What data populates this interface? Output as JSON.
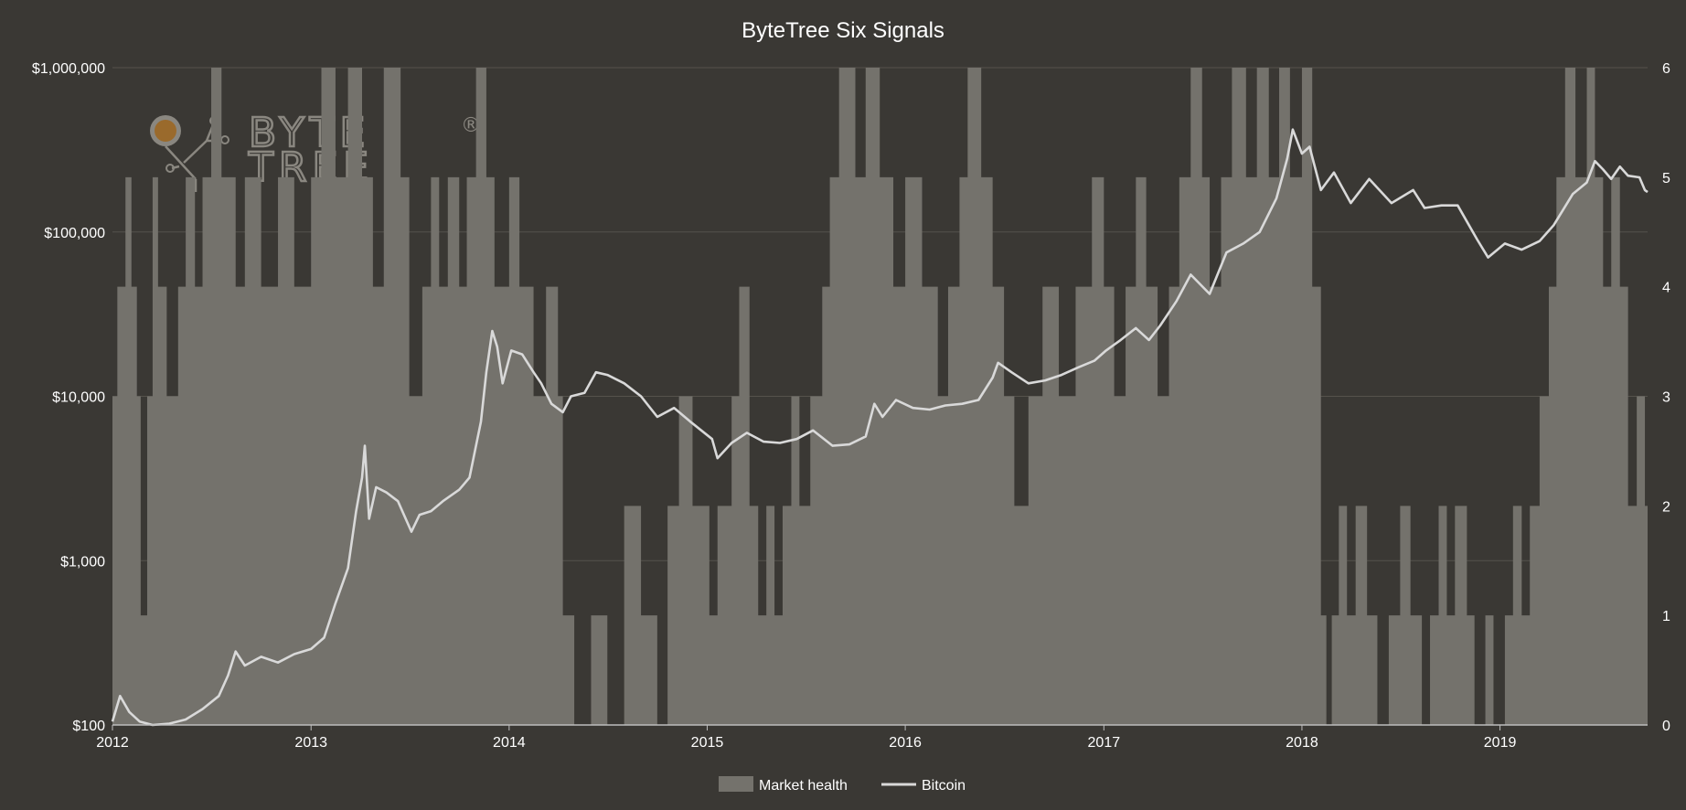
{
  "chart_data": {
    "type": "line",
    "title": "ByteTree Six Signals",
    "x_ticks": [
      "2012",
      "2013",
      "2014",
      "2015",
      "2016",
      "2017",
      "2018",
      "2019"
    ],
    "xlim": [
      "2012-01-01",
      "2019-09-30"
    ],
    "y_left": {
      "scale": "log",
      "lim": [
        100,
        1000000
      ],
      "ticks": [
        100,
        1000,
        10000,
        100000,
        1000000
      ],
      "tick_labels": [
        "$100",
        "$1,000",
        "$10,000",
        "$100,000",
        "$1,000,000"
      ]
    },
    "y_right": {
      "scale": "linear",
      "lim": [
        0,
        6
      ],
      "ticks": [
        0,
        1,
        2,
        3,
        4,
        5,
        6
      ],
      "tick_labels": [
        "0",
        "1",
        "2",
        "3",
        "4",
        "5",
        "6"
      ]
    },
    "grid": true,
    "legend_position": "bottom-center",
    "legend": [
      "Market health",
      "Bitcoin"
    ],
    "series": [
      {
        "name": "Market health",
        "type": "step-area",
        "axis": "right",
        "color": "#74726c",
        "points": [
          [
            "2012-01-01",
            3
          ],
          [
            "2012-01-10",
            4
          ],
          [
            "2012-01-25",
            5
          ],
          [
            "2012-02-05",
            4
          ],
          [
            "2012-02-15",
            3
          ],
          [
            "2012-02-22",
            1
          ],
          [
            "2012-03-05",
            3
          ],
          [
            "2012-03-15",
            5
          ],
          [
            "2012-03-25",
            4
          ],
          [
            "2012-04-10",
            3
          ],
          [
            "2012-05-01",
            4
          ],
          [
            "2012-05-15",
            5
          ],
          [
            "2012-06-01",
            4
          ],
          [
            "2012-06-15",
            5
          ],
          [
            "2012-07-01",
            6
          ],
          [
            "2012-07-20",
            5
          ],
          [
            "2012-08-15",
            4
          ],
          [
            "2012-09-01",
            5
          ],
          [
            "2012-10-01",
            4
          ],
          [
            "2012-11-01",
            5
          ],
          [
            "2012-12-01",
            4
          ],
          [
            "2013-01-01",
            5
          ],
          [
            "2013-01-20",
            6
          ],
          [
            "2013-02-15",
            5
          ],
          [
            "2013-03-10",
            6
          ],
          [
            "2013-04-05",
            5
          ],
          [
            "2013-04-25",
            4
          ],
          [
            "2013-05-15",
            6
          ],
          [
            "2013-06-15",
            5
          ],
          [
            "2013-07-01",
            3
          ],
          [
            "2013-07-25",
            4
          ],
          [
            "2013-08-10",
            5
          ],
          [
            "2013-08-25",
            4
          ],
          [
            "2013-09-10",
            5
          ],
          [
            "2013-10-01",
            4
          ],
          [
            "2013-10-15",
            5
          ],
          [
            "2013-11-01",
            6
          ],
          [
            "2013-11-20",
            5
          ],
          [
            "2013-12-05",
            4
          ],
          [
            "2014-01-01",
            5
          ],
          [
            "2014-01-20",
            4
          ],
          [
            "2014-02-15",
            3
          ],
          [
            "2014-03-10",
            4
          ],
          [
            "2014-04-01",
            3
          ],
          [
            "2014-04-10",
            1
          ],
          [
            "2014-05-01",
            0
          ],
          [
            "2014-06-01",
            1
          ],
          [
            "2014-07-01",
            0
          ],
          [
            "2014-08-01",
            2
          ],
          [
            "2014-09-01",
            1
          ],
          [
            "2014-10-01",
            0
          ],
          [
            "2014-10-20",
            2
          ],
          [
            "2014-11-10",
            3
          ],
          [
            "2014-12-05",
            2
          ],
          [
            "2015-01-05",
            1
          ],
          [
            "2015-01-20",
            2
          ],
          [
            "2015-02-15",
            3
          ],
          [
            "2015-03-01",
            4
          ],
          [
            "2015-03-20",
            2
          ],
          [
            "2015-04-05",
            1
          ],
          [
            "2015-04-20",
            2
          ],
          [
            "2015-05-05",
            1
          ],
          [
            "2015-05-20",
            2
          ],
          [
            "2015-06-05",
            3
          ],
          [
            "2015-06-20",
            2
          ],
          [
            "2015-07-10",
            3
          ],
          [
            "2015-08-01",
            4
          ],
          [
            "2015-08-15",
            5
          ],
          [
            "2015-09-01",
            6
          ],
          [
            "2015-10-01",
            5
          ],
          [
            "2015-10-20",
            6
          ],
          [
            "2015-11-15",
            5
          ],
          [
            "2015-12-10",
            4
          ],
          [
            "2016-01-01",
            5
          ],
          [
            "2016-02-01",
            4
          ],
          [
            "2016-03-01",
            3
          ],
          [
            "2016-03-20",
            4
          ],
          [
            "2016-04-10",
            5
          ],
          [
            "2016-04-25",
            6
          ],
          [
            "2016-05-20",
            5
          ],
          [
            "2016-06-10",
            4
          ],
          [
            "2016-07-01",
            3
          ],
          [
            "2016-07-20",
            2
          ],
          [
            "2016-08-15",
            3
          ],
          [
            "2016-09-10",
            4
          ],
          [
            "2016-10-10",
            3
          ],
          [
            "2016-11-10",
            4
          ],
          [
            "2016-12-10",
            5
          ],
          [
            "2017-01-01",
            4
          ],
          [
            "2017-01-20",
            3
          ],
          [
            "2017-02-10",
            4
          ],
          [
            "2017-03-01",
            5
          ],
          [
            "2017-03-20",
            4
          ],
          [
            "2017-04-10",
            3
          ],
          [
            "2017-05-01",
            4
          ],
          [
            "2017-05-20",
            5
          ],
          [
            "2017-06-10",
            6
          ],
          [
            "2017-07-01",
            5
          ],
          [
            "2017-07-15",
            4
          ],
          [
            "2017-08-05",
            5
          ],
          [
            "2017-08-25",
            6
          ],
          [
            "2017-09-20",
            5
          ],
          [
            "2017-10-10",
            6
          ],
          [
            "2017-11-01",
            5
          ],
          [
            "2017-11-20",
            6
          ],
          [
            "2017-12-10",
            5
          ],
          [
            "2018-01-01",
            6
          ],
          [
            "2018-01-20",
            4
          ],
          [
            "2018-02-05",
            1
          ],
          [
            "2018-02-15",
            0
          ],
          [
            "2018-02-25",
            1
          ],
          [
            "2018-03-10",
            2
          ],
          [
            "2018-03-25",
            1
          ],
          [
            "2018-04-10",
            2
          ],
          [
            "2018-05-01",
            1
          ],
          [
            "2018-05-20",
            0
          ],
          [
            "2018-06-10",
            1
          ],
          [
            "2018-07-01",
            2
          ],
          [
            "2018-07-20",
            1
          ],
          [
            "2018-08-10",
            0
          ],
          [
            "2018-08-25",
            1
          ],
          [
            "2018-09-10",
            2
          ],
          [
            "2018-09-25",
            1
          ],
          [
            "2018-10-10",
            2
          ],
          [
            "2018-11-01",
            1
          ],
          [
            "2018-11-15",
            0
          ],
          [
            "2018-12-05",
            1
          ],
          [
            "2018-12-20",
            0
          ],
          [
            "2019-01-10",
            1
          ],
          [
            "2019-01-25",
            2
          ],
          [
            "2019-02-10",
            1
          ],
          [
            "2019-02-25",
            2
          ],
          [
            "2019-03-15",
            3
          ],
          [
            "2019-04-01",
            4
          ],
          [
            "2019-04-15",
            5
          ],
          [
            "2019-05-01",
            6
          ],
          [
            "2019-05-20",
            5
          ],
          [
            "2019-06-10",
            6
          ],
          [
            "2019-06-25",
            5
          ],
          [
            "2019-07-10",
            4
          ],
          [
            "2019-07-25",
            5
          ],
          [
            "2019-08-10",
            4
          ],
          [
            "2019-08-25",
            2
          ],
          [
            "2019-09-10",
            3
          ],
          [
            "2019-09-25",
            2
          ],
          [
            "2019-09-30",
            2
          ]
        ]
      },
      {
        "name": "Bitcoin",
        "type": "line",
        "axis": "left",
        "color": "#d9d9d9",
        "points": [
          [
            "2012-01-01",
            105
          ],
          [
            "2012-01-15",
            150
          ],
          [
            "2012-02-01",
            120
          ],
          [
            "2012-02-20",
            105
          ],
          [
            "2012-03-15",
            100
          ],
          [
            "2012-04-15",
            102
          ],
          [
            "2012-05-15",
            108
          ],
          [
            "2012-06-15",
            125
          ],
          [
            "2012-07-15",
            150
          ],
          [
            "2012-08-01",
            200
          ],
          [
            "2012-08-15",
            280
          ],
          [
            "2012-09-01",
            230
          ],
          [
            "2012-10-01",
            260
          ],
          [
            "2012-11-01",
            240
          ],
          [
            "2012-12-01",
            270
          ],
          [
            "2013-01-01",
            290
          ],
          [
            "2013-01-25",
            340
          ],
          [
            "2013-02-15",
            550
          ],
          [
            "2013-03-10",
            900
          ],
          [
            "2013-03-25",
            2000
          ],
          [
            "2013-04-05",
            3200
          ],
          [
            "2013-04-10",
            5000
          ],
          [
            "2013-04-18",
            1800
          ],
          [
            "2013-05-01",
            2800
          ],
          [
            "2013-05-20",
            2600
          ],
          [
            "2013-06-10",
            2300
          ],
          [
            "2013-07-05",
            1500
          ],
          [
            "2013-07-20",
            1900
          ],
          [
            "2013-08-10",
            2000
          ],
          [
            "2013-09-01",
            2300
          ],
          [
            "2013-10-01",
            2700
          ],
          [
            "2013-10-20",
            3200
          ],
          [
            "2013-11-10",
            7000
          ],
          [
            "2013-11-20",
            14000
          ],
          [
            "2013-12-01",
            25000
          ],
          [
            "2013-12-10",
            20000
          ],
          [
            "2013-12-20",
            12000
          ],
          [
            "2014-01-05",
            19000
          ],
          [
            "2014-01-25",
            18000
          ],
          [
            "2014-02-15",
            14000
          ],
          [
            "2014-03-01",
            12000
          ],
          [
            "2014-03-20",
            9000
          ],
          [
            "2014-04-10",
            8000
          ],
          [
            "2014-04-25",
            10000
          ],
          [
            "2014-05-20",
            10500
          ],
          [
            "2014-06-10",
            14000
          ],
          [
            "2014-07-01",
            13500
          ],
          [
            "2014-08-01",
            12000
          ],
          [
            "2014-09-01",
            10000
          ],
          [
            "2014-10-01",
            7500
          ],
          [
            "2014-11-01",
            8500
          ],
          [
            "2014-12-01",
            7000
          ],
          [
            "2015-01-10",
            5500
          ],
          [
            "2015-01-20",
            4200
          ],
          [
            "2015-02-15",
            5200
          ],
          [
            "2015-03-15",
            6000
          ],
          [
            "2015-04-15",
            5300
          ],
          [
            "2015-05-15",
            5200
          ],
          [
            "2015-06-15",
            5500
          ],
          [
            "2015-07-15",
            6200
          ],
          [
            "2015-08-20",
            5000
          ],
          [
            "2015-09-20",
            5100
          ],
          [
            "2015-10-20",
            5700
          ],
          [
            "2015-11-05",
            9000
          ],
          [
            "2015-11-20",
            7500
          ],
          [
            "2015-12-15",
            9500
          ],
          [
            "2016-01-15",
            8500
          ],
          [
            "2016-02-15",
            8300
          ],
          [
            "2016-03-15",
            8800
          ],
          [
            "2016-04-15",
            9000
          ],
          [
            "2016-05-15",
            9500
          ],
          [
            "2016-06-10",
            13000
          ],
          [
            "2016-06-20",
            16000
          ],
          [
            "2016-07-15",
            14000
          ],
          [
            "2016-08-15",
            12000
          ],
          [
            "2016-09-15",
            12500
          ],
          [
            "2016-10-15",
            13500
          ],
          [
            "2016-11-15",
            15000
          ],
          [
            "2016-12-15",
            16500
          ],
          [
            "2017-01-05",
            19000
          ],
          [
            "2017-02-01",
            22000
          ],
          [
            "2017-03-01",
            26000
          ],
          [
            "2017-03-25",
            22000
          ],
          [
            "2017-04-15",
            27000
          ],
          [
            "2017-05-15",
            38000
          ],
          [
            "2017-06-10",
            55000
          ],
          [
            "2017-07-15",
            42000
          ],
          [
            "2017-08-15",
            75000
          ],
          [
            "2017-09-15",
            85000
          ],
          [
            "2017-10-15",
            100000
          ],
          [
            "2017-11-15",
            160000
          ],
          [
            "2017-12-05",
            280000
          ],
          [
            "2017-12-15",
            420000
          ],
          [
            "2018-01-01",
            300000
          ],
          [
            "2018-01-15",
            330000
          ],
          [
            "2018-02-05",
            180000
          ],
          [
            "2018-03-01",
            230000
          ],
          [
            "2018-04-01",
            150000
          ],
          [
            "2018-05-05",
            210000
          ],
          [
            "2018-06-15",
            150000
          ],
          [
            "2018-07-25",
            180000
          ],
          [
            "2018-08-15",
            140000
          ],
          [
            "2018-09-15",
            145000
          ],
          [
            "2018-10-15",
            145000
          ],
          [
            "2018-11-20",
            90000
          ],
          [
            "2018-12-10",
            70000
          ],
          [
            "2019-01-10",
            85000
          ],
          [
            "2019-02-10",
            78000
          ],
          [
            "2019-03-15",
            88000
          ],
          [
            "2019-04-10",
            110000
          ],
          [
            "2019-05-15",
            170000
          ],
          [
            "2019-06-10",
            200000
          ],
          [
            "2019-06-25",
            270000
          ],
          [
            "2019-07-10",
            240000
          ],
          [
            "2019-07-25",
            210000
          ],
          [
            "2019-08-10",
            250000
          ],
          [
            "2019-08-25",
            220000
          ],
          [
            "2019-09-15",
            215000
          ],
          [
            "2019-09-25",
            180000
          ],
          [
            "2019-09-30",
            175000
          ]
        ]
      }
    ]
  },
  "watermark": {
    "line1": "BYTE",
    "line2": "TREE",
    "registered": "®"
  }
}
